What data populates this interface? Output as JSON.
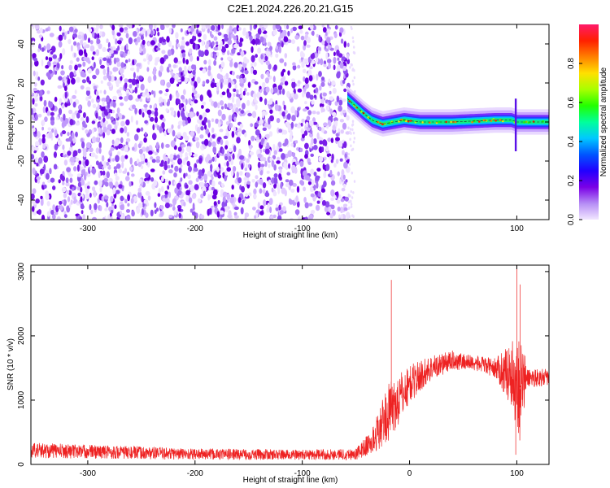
{
  "title": "C2E1.2024.226.20.21.G15",
  "chart_data": [
    {
      "type": "heatmap",
      "xlabel": "Height of straight line (km)",
      "ylabel": "Frequency (Hz)",
      "xlim": [
        -353,
        130
      ],
      "ylim": [
        -50,
        50
      ],
      "x_ticks": [
        -300,
        -200,
        -100,
        0,
        100
      ],
      "y_ticks": [
        -40,
        -20,
        0,
        20,
        40
      ],
      "colorbar": {
        "label": "Normalized spectral amplitude",
        "range": [
          0,
          1
        ],
        "ticks": [
          "0.0",
          "0.2",
          "0.4",
          "0.6",
          "0.8"
        ],
        "colors": [
          "#f2e6ff",
          "#b58cf5",
          "#7a00e6",
          "#2200ff",
          "#0055ff",
          "#00c8ff",
          "#00ff9a",
          "#22ff00",
          "#a8ff00",
          "#ffe000",
          "#ff8000",
          "#ff2000",
          "#ff1a6a"
        ]
      },
      "noise_region_x": [
        -353,
        -57
      ],
      "signal_track": [
        {
          "x": -58,
          "y": 12
        },
        {
          "x": -50,
          "y": 8
        },
        {
          "x": -42,
          "y": 4
        },
        {
          "x": -35,
          "y": 1
        },
        {
          "x": -25,
          "y": -1
        },
        {
          "x": -15,
          "y": 0
        },
        {
          "x": -5,
          "y": 1
        },
        {
          "x": 10,
          "y": 0
        },
        {
          "x": 40,
          "y": 0
        },
        {
          "x": 80,
          "y": 1
        },
        {
          "x": 95,
          "y": 1
        },
        {
          "x": 100,
          "y": 0
        },
        {
          "x": 130,
          "y": 0
        }
      ],
      "spike": {
        "x": 99,
        "y_range": [
          -15,
          12
        ]
      }
    },
    {
      "type": "line",
      "xlabel": "Height of straight line (km)",
      "ylabel": "SNR (10 * v/v)",
      "xlim": [
        -353,
        130
      ],
      "ylim": [
        0,
        3100
      ],
      "x_ticks": [
        -300,
        -200,
        -100,
        0,
        100
      ],
      "y_ticks": [
        0,
        1000,
        2000,
        3000
      ],
      "color": "#ee2222",
      "envelope": [
        {
          "x": -353,
          "base": 220,
          "amp": 120
        },
        {
          "x": -300,
          "base": 200,
          "amp": 110
        },
        {
          "x": -200,
          "base": 160,
          "amp": 90
        },
        {
          "x": -100,
          "base": 150,
          "amp": 80
        },
        {
          "x": -50,
          "base": 160,
          "amp": 90
        },
        {
          "x": -35,
          "base": 350,
          "amp": 200
        },
        {
          "x": -20,
          "base": 800,
          "amp": 450
        },
        {
          "x": -10,
          "base": 1000,
          "amp": 400
        },
        {
          "x": 0,
          "base": 1250,
          "amp": 300
        },
        {
          "x": 20,
          "base": 1500,
          "amp": 200
        },
        {
          "x": 40,
          "base": 1620,
          "amp": 150
        },
        {
          "x": 60,
          "base": 1580,
          "amp": 120
        },
        {
          "x": 80,
          "base": 1500,
          "amp": 150
        },
        {
          "x": 95,
          "base": 1400,
          "amp": 500
        },
        {
          "x": 103,
          "base": 1200,
          "amp": 900
        },
        {
          "x": 110,
          "base": 1350,
          "amp": 150
        },
        {
          "x": 130,
          "base": 1350,
          "amp": 130
        }
      ],
      "spikes": [
        {
          "x": -17,
          "y": 2870
        },
        {
          "x": 100,
          "y": 3100
        },
        {
          "x": 103,
          "y": 2800
        },
        {
          "x": 99,
          "y": 150
        }
      ]
    }
  ]
}
